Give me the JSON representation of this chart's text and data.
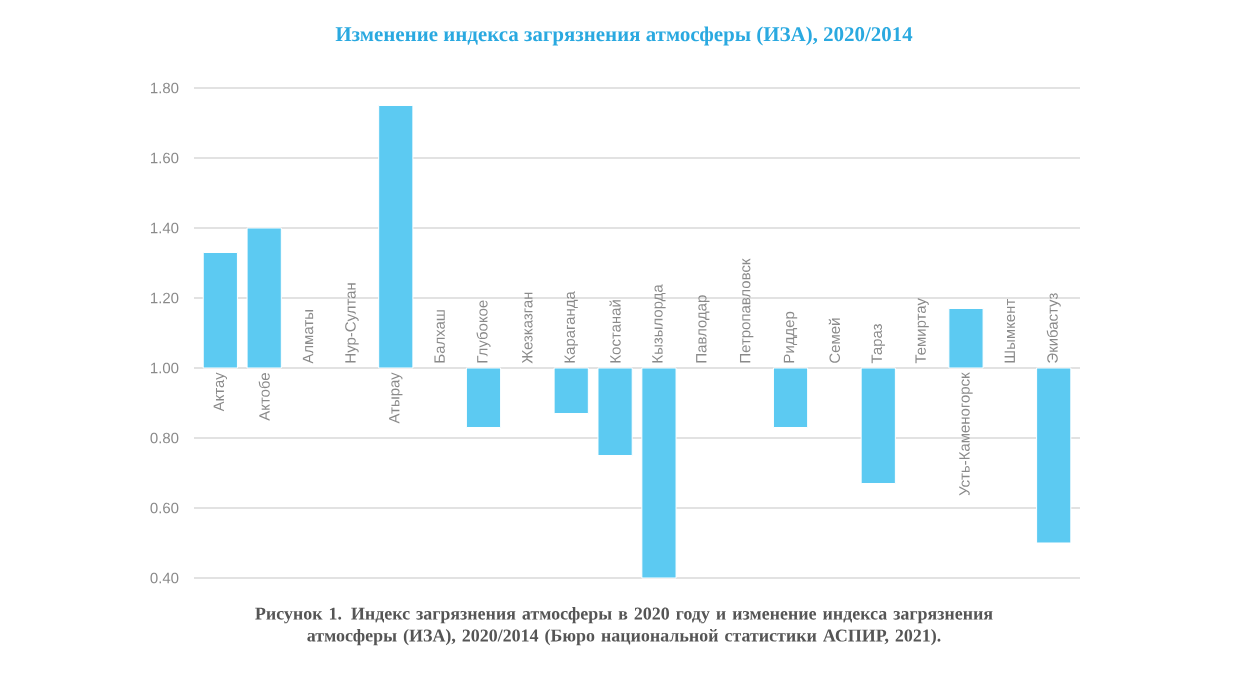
{
  "chart_data": {
    "type": "bar",
    "title": "Изменение индекса загрязнения атмосферы (ИЗА), 2020/2014",
    "categories": [
      "Актау",
      "Актобе",
      "Алматы",
      "Нур-Султан",
      "Атырау",
      "Балхаш",
      "Глубокое",
      "Жезказган",
      "Караганда",
      "Костанай",
      "Кызылорда",
      "Павлодар",
      "Петропавловск",
      "Риддер",
      "Семей",
      "Тараз",
      "Темиртау",
      "Усть-Каменогорск",
      "Шымкент",
      "Экибастуз"
    ],
    "base": [
      1.0,
      1.0,
      null,
      null,
      1.0,
      null,
      1.0,
      null,
      1.0,
      1.0,
      1.0,
      null,
      null,
      1.0,
      null,
      1.0,
      null,
      1.0,
      null,
      1.0
    ],
    "values": [
      0.33,
      0.4,
      null,
      null,
      0.75,
      null,
      -0.17,
      null,
      -0.13,
      -0.25,
      -0.6,
      null,
      null,
      -0.17,
      null,
      -0.33,
      null,
      0.17,
      null,
      -0.5
    ],
    "color": "#5ccaf2",
    "ylim": [
      0.4,
      1.8
    ],
    "yticks": [
      {
        "value": 0.4,
        "label": "0.40"
      },
      {
        "value": 0.6,
        "label": "0.60"
      },
      {
        "value": 0.8,
        "label": "0.80"
      },
      {
        "value": 1.0,
        "label": "1.00"
      },
      {
        "value": 1.2,
        "label": "1.20"
      },
      {
        "value": 1.4,
        "label": "1.40"
      },
      {
        "value": 1.6,
        "label": "1.60"
      },
      {
        "value": 1.8,
        "label": "1.80"
      }
    ],
    "grid": "y",
    "annotations": [
      "Рисунок 1. Индекс загрязнения атмосферы в 2020 году и изменение индекса загрязнения атмосферы (ИЗА), 2020/2014 (Бюро национальной статистики АСПИР, 2021)."
    ]
  }
}
